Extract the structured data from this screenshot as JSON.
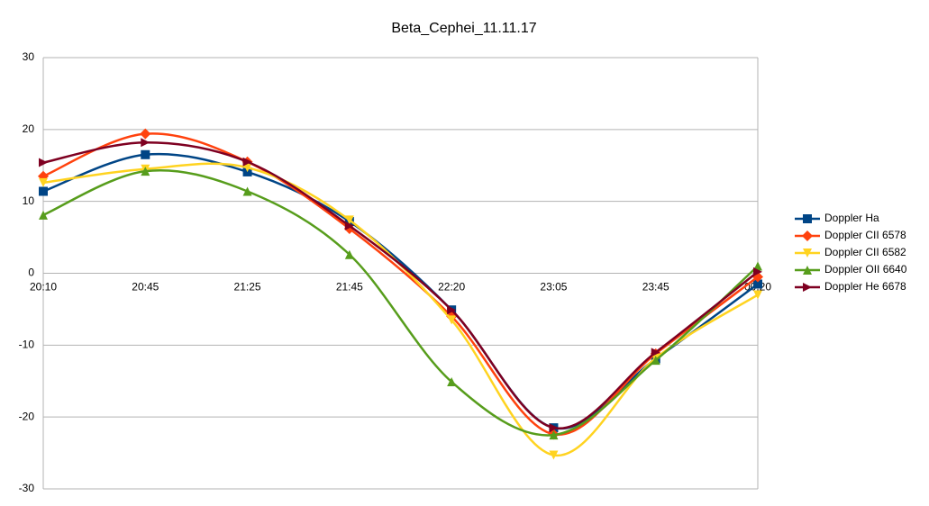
{
  "chart_data": {
    "type": "line",
    "title": "Beta_Cephei_11.11.17",
    "categories": [
      "20:10",
      "20:45",
      "21:25",
      "21:45",
      "22:20",
      "23:05",
      "23:45",
      "00:20"
    ],
    "series": [
      {
        "name": "Doppler Ha",
        "color": "#004586",
        "marker": "square",
        "values": [
          11.4,
          16.5,
          14.1,
          7.2,
          -5.1,
          -21.5,
          -11.9,
          -1.5
        ]
      },
      {
        "name": "Doppler CII 6578",
        "color": "#ff420e",
        "marker": "diamond",
        "values": [
          13.5,
          19.4,
          15.5,
          6.2,
          -6.0,
          -22.4,
          -11.2,
          -0.5
        ]
      },
      {
        "name": "Doppler CII 6582",
        "color": "#ffd320",
        "marker": "triangle-down",
        "values": [
          12.6,
          14.5,
          14.7,
          7.4,
          -6.5,
          -25.3,
          -11.8,
          -3.0
        ]
      },
      {
        "name": "Doppler OII 6640",
        "color": "#579d1c",
        "marker": "triangle-up",
        "values": [
          8.1,
          14.2,
          11.4,
          2.6,
          -15.1,
          -22.5,
          -12.1,
          1.0
        ]
      },
      {
        "name": "Doppler He 6678",
        "color": "#7e0021",
        "marker": "triangle-right",
        "values": [
          15.4,
          18.2,
          15.5,
          6.6,
          -5.1,
          -21.5,
          -11.0,
          0.2
        ]
      }
    ],
    "ylim": [
      -30,
      30
    ],
    "yticks": [
      -30,
      -20,
      -10,
      0,
      10,
      20,
      30
    ],
    "grid": true,
    "smooth": true,
    "legend": "right"
  }
}
